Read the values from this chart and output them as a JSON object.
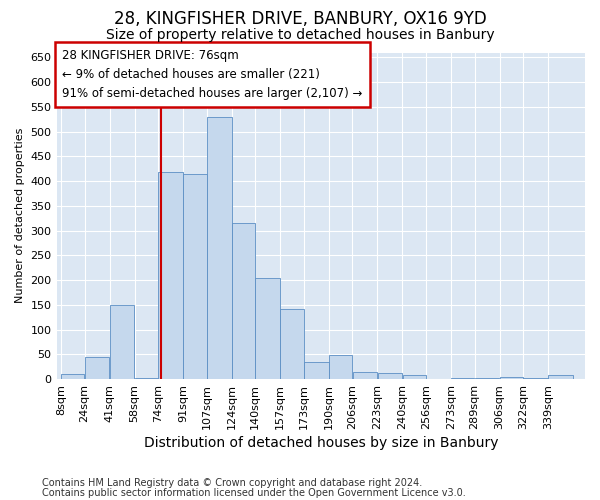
{
  "title1": "28, KINGFISHER DRIVE, BANBURY, OX16 9YD",
  "title2": "Size of property relative to detached houses in Banbury",
  "xlabel": "Distribution of detached houses by size in Banbury",
  "ylabel": "Number of detached properties",
  "footnote1": "Contains HM Land Registry data © Crown copyright and database right 2024.",
  "footnote2": "Contains public sector information licensed under the Open Government Licence v3.0.",
  "annotation_line1": "28 KINGFISHER DRIVE: 76sqm",
  "annotation_line2": "← 9% of detached houses are smaller (221)",
  "annotation_line3": "91% of semi-detached houses are larger (2,107) →",
  "bar_color": "#c5d8ed",
  "bar_edge_color": "#5b8ec4",
  "redline_x": 76,
  "categories": [
    "8sqm",
    "24sqm",
    "41sqm",
    "58sqm",
    "74sqm",
    "91sqm",
    "107sqm",
    "124sqm",
    "140sqm",
    "157sqm",
    "173sqm",
    "190sqm",
    "206sqm",
    "223sqm",
    "240sqm",
    "256sqm",
    "273sqm",
    "289sqm",
    "306sqm",
    "322sqm",
    "339sqm"
  ],
  "bin_edges": [
    8,
    24,
    41,
    58,
    74,
    91,
    107,
    124,
    140,
    157,
    173,
    190,
    206,
    223,
    240,
    256,
    273,
    289,
    306,
    322,
    339,
    356
  ],
  "values": [
    10,
    45,
    150,
    2,
    418,
    415,
    530,
    315,
    205,
    142,
    35,
    48,
    15,
    13,
    8,
    1,
    3,
    3,
    5,
    3,
    8
  ],
  "ylim": [
    0,
    660
  ],
  "yticks": [
    0,
    50,
    100,
    150,
    200,
    250,
    300,
    350,
    400,
    450,
    500,
    550,
    600,
    650
  ],
  "plot_bg_color": "#dce7f3",
  "fig_bg_color": "#ffffff",
  "grid_color": "#ffffff",
  "title1_fontsize": 12,
  "title2_fontsize": 10,
  "annotation_box_facecolor": "#ffffff",
  "annotation_box_edgecolor": "#cc0000",
  "redline_color": "#cc0000",
  "ann_fontsize": 8.5,
  "ylabel_fontsize": 8,
  "xlabel_fontsize": 10,
  "tick_fontsize": 8,
  "xtick_fontsize": 8,
  "footnote_fontsize": 7
}
